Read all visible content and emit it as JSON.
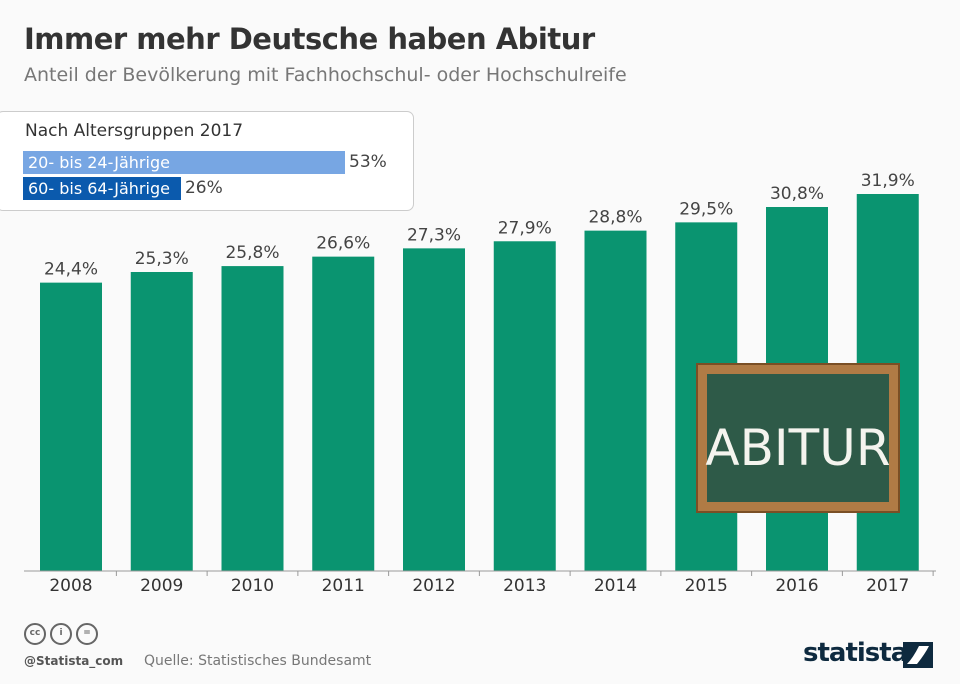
{
  "header": {
    "title": "Immer mehr Deutsche haben Abitur",
    "subtitle": "Anteil der Bevölkerung mit Fachhochschul- oder Hochschulreife"
  },
  "legend_box": {
    "title": "Nach Altersgruppen 2017",
    "items": [
      {
        "label": "20- bis 24-Jährige",
        "value": 53,
        "value_label": "53%",
        "color": "#77a6e3"
      },
      {
        "label": "60- bis 64-Jährige",
        "value": 26,
        "value_label": "26%",
        "color": "#0b5aad"
      }
    ]
  },
  "chart_data": {
    "type": "bar",
    "categories": [
      "2008",
      "2009",
      "2010",
      "2011",
      "2012",
      "2013",
      "2014",
      "2015",
      "2016",
      "2017"
    ],
    "values": [
      24.4,
      25.3,
      25.8,
      26.6,
      27.3,
      27.9,
      28.8,
      29.5,
      30.8,
      31.9
    ],
    "data_labels": [
      "24,4%",
      "25,3%",
      "25,8%",
      "26,6%",
      "27,3%",
      "27,9%",
      "28,8%",
      "29,5%",
      "30,8%",
      "31,9%"
    ],
    "ylim": [
      0,
      31.9
    ],
    "bar_color": "#0a9470",
    "grid": false
  },
  "illustration": {
    "chalkboard_text": "ABITUR"
  },
  "footer": {
    "handle": "@Statista_com",
    "source": "Quelle: Statistisches Bundesamt",
    "logo": "statista",
    "cc_icons": [
      "cc",
      "by",
      "nd"
    ]
  }
}
